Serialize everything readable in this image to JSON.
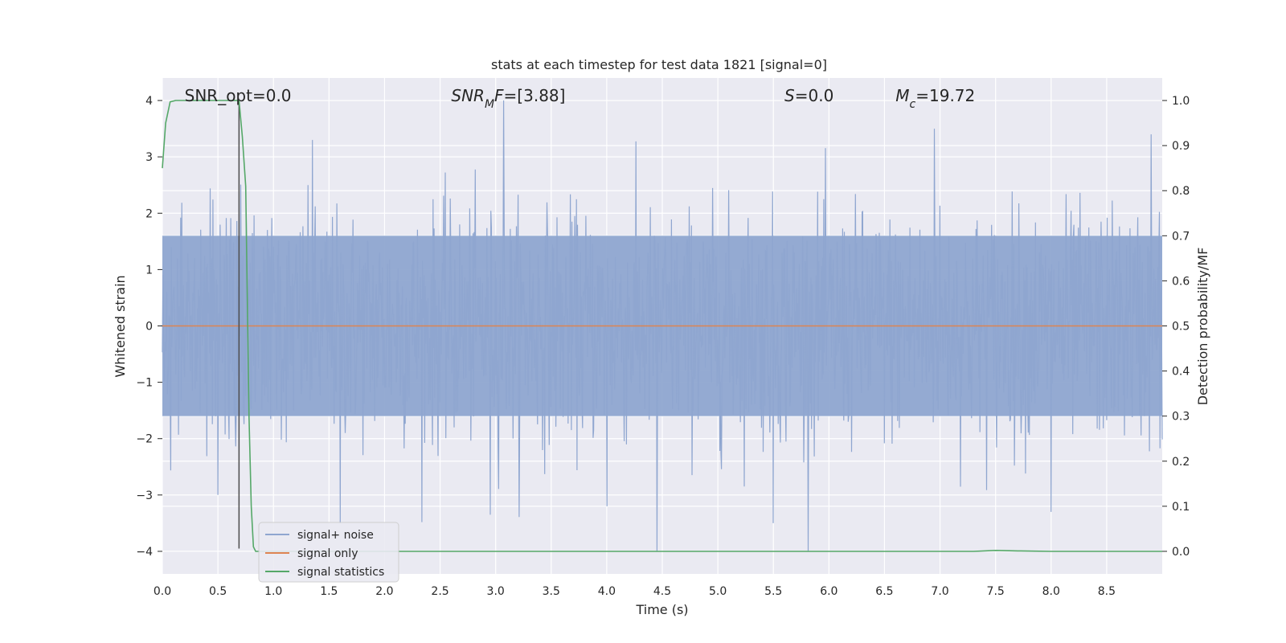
{
  "chart_data": {
    "type": "line",
    "title": "stats at each timestep for test data 1821 [signal=0]",
    "xlabel": "Time (s)",
    "ylabel_left": "Whitened strain",
    "ylabel_right": "Detection probability/MF",
    "xlim": [
      0.0,
      9.0
    ],
    "ylim_left": [
      -4.4,
      4.4
    ],
    "ylim_right": [
      -0.05,
      1.05
    ],
    "x_ticks": [
      "0.0",
      "0.5",
      "1.0",
      "1.5",
      "2.0",
      "2.5",
      "3.0",
      "3.5",
      "4.0",
      "4.5",
      "5.0",
      "5.5",
      "6.0",
      "6.5",
      "7.0",
      "7.5",
      "8.0",
      "8.5"
    ],
    "y_ticks_left": [
      "−4",
      "−3",
      "−2",
      "−1",
      "0",
      "1",
      "2",
      "3",
      "4"
    ],
    "y_ticks_right": [
      "0.0",
      "0.1",
      "0.2",
      "0.3",
      "0.4",
      "0.5",
      "0.6",
      "0.7",
      "0.8",
      "0.9",
      "1.0"
    ],
    "grid": true,
    "background": "#eaeaf2",
    "annotations": [
      {
        "text": "SNR_opt=0.0",
        "x": 0.2,
        "y": 4.1
      },
      {
        "text": "SNR_MF=[3.88]",
        "x": 2.6,
        "y": 4.1
      },
      {
        "text": "S=0.0",
        "x": 5.6,
        "y": 4.1
      },
      {
        "text": "M_c=19.72",
        "x": 6.6,
        "y": 4.1
      }
    ],
    "vline": {
      "x": 0.69,
      "y_from": -3.95,
      "y_to": 4.0,
      "color": "#4c4c4c"
    },
    "legend": {
      "position": "lower left",
      "entries": [
        {
          "label": "signal+ noise",
          "color": "#8fa6d0"
        },
        {
          "label": "signal only",
          "color": "#dd8452"
        },
        {
          "label": "signal statistics",
          "color": "#55a868"
        }
      ]
    },
    "series": [
      {
        "name": "signal+ noise",
        "axis": "left",
        "color": "#8fa6d0",
        "description_values": "dense noise trace",
        "envelope": {
          "typical_low": -1.6,
          "typical_high": 1.6,
          "peak_high": 4.0,
          "peak_low": -4.0
        },
        "peaks": [
          {
            "x": 1.35,
            "y": 3.3
          },
          {
            "x": 3.07,
            "y": 4.0
          },
          {
            "x": 4.45,
            "y": -4.0
          },
          {
            "x": 6.95,
            "y": 3.5
          },
          {
            "x": 8.9,
            "y": 3.4
          },
          {
            "x": 1.6,
            "y": -3.5
          },
          {
            "x": 2.95,
            "y": -3.35
          },
          {
            "x": 5.5,
            "y": -3.5
          },
          {
            "x": 8.0,
            "y": -3.3
          },
          {
            "x": 4.0,
            "y": -3.2
          },
          {
            "x": 0.5,
            "y": -3.0
          }
        ]
      },
      {
        "name": "signal only",
        "axis": "left",
        "color": "#dd8452",
        "x": [
          0.0,
          9.0
        ],
        "y": [
          0.0,
          0.0
        ]
      },
      {
        "name": "signal statistics",
        "axis": "right",
        "color": "#55a868",
        "x": [
          0.0,
          0.03,
          0.07,
          0.12,
          0.2,
          0.4,
          0.6,
          0.69,
          0.72,
          0.75,
          0.78,
          0.8,
          0.82,
          0.84,
          1.0,
          2.0,
          3.0,
          4.0,
          5.0,
          6.0,
          7.0,
          7.3,
          7.5,
          7.7,
          8.0,
          9.0
        ],
        "y": [
          0.85,
          0.95,
          0.997,
          1.0,
          1.0,
          1.0,
          1.0,
          1.0,
          0.92,
          0.81,
          0.3,
          0.1,
          0.01,
          0.0,
          0.0,
          0.0,
          0.0,
          0.0,
          0.0,
          0.0,
          0.0,
          0.0,
          0.002,
          0.001,
          0.0,
          0.0
        ]
      }
    ]
  }
}
